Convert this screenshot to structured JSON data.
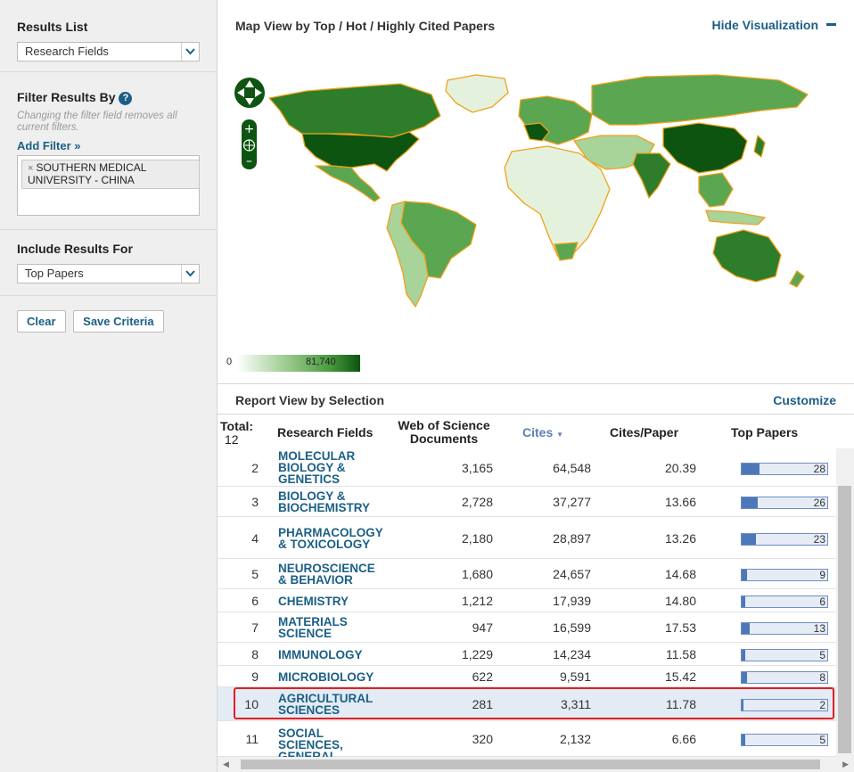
{
  "sidebar": {
    "results_list_title": "Results List",
    "results_list_value": "Research Fields",
    "filter_title": "Filter Results By",
    "help_glyph": "?",
    "filter_note": "Changing the filter field removes all current filters.",
    "add_filter": "Add Filter »",
    "filter_chip_remove": "×",
    "filter_chip": "SOUTHERN MEDICAL UNIVERSITY - CHINA",
    "include_title": "Include Results For",
    "include_value": "Top Papers",
    "clear_button": "Clear",
    "save_button": "Save Criteria"
  },
  "map": {
    "title": "Map View by Top / Hot / Highly Cited Papers",
    "hide_label": "Hide Visualization",
    "legend_min": "0",
    "legend_max": "81,740"
  },
  "report": {
    "title": "Report View by Selection",
    "customize": "Customize",
    "total_label": "Total:",
    "total_value": "12",
    "columns": {
      "field": "Research Fields",
      "docs": "Web of Science Documents",
      "cites": "Cites",
      "cites_paper": "Cites/Paper",
      "top_papers": "Top Papers"
    },
    "rows": [
      {
        "rank": "2",
        "field": "MOLECULAR BIOLOGY & GENETICS",
        "docs": "3,165",
        "cites": "64,548",
        "cpp": "20.39",
        "top": "28",
        "top_value": 28
      },
      {
        "rank": "3",
        "field": "BIOLOGY & BIOCHEMISTRY",
        "docs": "2,728",
        "cites": "37,277",
        "cpp": "13.66",
        "top": "26",
        "top_value": 26
      },
      {
        "rank": "4",
        "field": "PHARMACOLOGY & TOXICOLOGY",
        "docs": "2,180",
        "cites": "28,897",
        "cpp": "13.26",
        "top": "23",
        "top_value": 23
      },
      {
        "rank": "5",
        "field": "NEUROSCIENCE & BEHAVIOR",
        "docs": "1,680",
        "cites": "24,657",
        "cpp": "14.68",
        "top": "9",
        "top_value": 9
      },
      {
        "rank": "6",
        "field": "CHEMISTRY",
        "docs": "1,212",
        "cites": "17,939",
        "cpp": "14.80",
        "top": "6",
        "top_value": 6
      },
      {
        "rank": "7",
        "field": "MATERIALS SCIENCE",
        "docs": "947",
        "cites": "16,599",
        "cpp": "17.53",
        "top": "13",
        "top_value": 13
      },
      {
        "rank": "8",
        "field": "IMMUNOLOGY",
        "docs": "1,229",
        "cites": "14,234",
        "cpp": "11.58",
        "top": "5",
        "top_value": 5
      },
      {
        "rank": "9",
        "field": "MICROBIOLOGY",
        "docs": "622",
        "cites": "9,591",
        "cpp": "15.42",
        "top": "8",
        "top_value": 8
      },
      {
        "rank": "10",
        "field": "AGRICULTURAL SCIENCES",
        "docs": "281",
        "cites": "3,311",
        "cpp": "11.78",
        "top": "2",
        "top_value": 2,
        "selected": true
      },
      {
        "rank": "11",
        "field": "SOCIAL SCIENCES, GENERAL",
        "docs": "320",
        "cites": "2,132",
        "cpp": "6.66",
        "top": "5",
        "top_value": 5
      }
    ]
  },
  "colors": {
    "link": "#1b5f86",
    "bar_fill": "#4d78b8",
    "map_dark": "#0c5410",
    "map_light": "#e4f1dd",
    "country_border": "#f0a21a",
    "highlight": "#e02020"
  }
}
